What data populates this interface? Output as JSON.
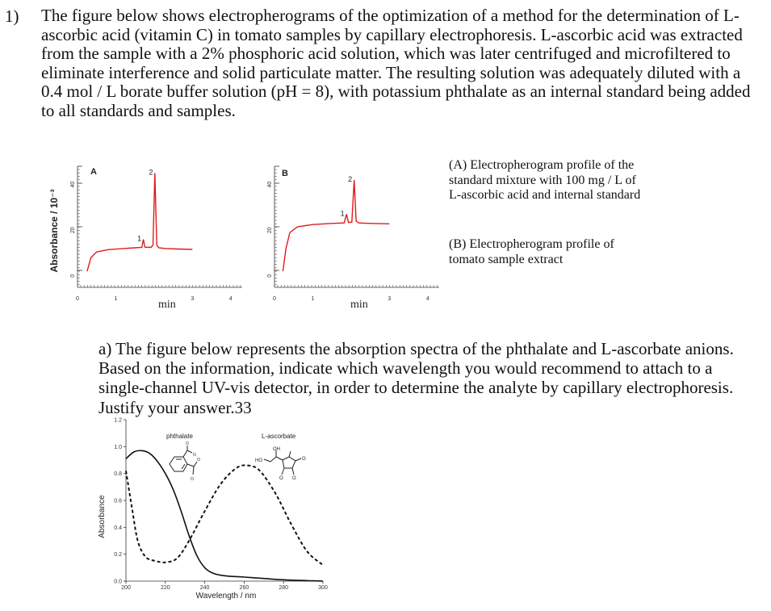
{
  "question": {
    "number": "1)",
    "intro": "The figure below shows electropherograms of the optimization of a method for the determination of L-ascorbic acid (vitamin C) in tomato samples by capillary electrophoresis. L-ascorbic acid was extracted from the sample with a 2% phosphoric acid solution, which was later centrifuged and microfiltered to eliminate interference and solid particulate matter. The resulting solution was adequately diluted with a 0.4 mol / L borate buffer solution (pH = 8), with potassium phthalate as an internal standard being added to all standards and samples."
  },
  "captions": {
    "a": "(A) Electropherogram profile of the standard mixture with 100 mg / L of L-ascorbic acid and internal standard",
    "b": "(B) Electropherogram profile of tomato sample extract"
  },
  "part_a": {
    "text": "a) The figure below represents the absorption spectra of the phthalate and L-ascorbate anions. Based on the information, indicate which wavelength you would recommend to attach to a single-channel UV-vis detector, in order to determine the analyte by capillary electrophoresis. Justify your answer.33"
  },
  "chart_data": [
    {
      "type": "line",
      "panel": "A",
      "ylabel": "Absorbance / 10⁻³",
      "xlabel": "min",
      "x_ticks": [
        "0",
        "1",
        "2",
        "3",
        "4"
      ],
      "y_ticks": [
        "0",
        "20",
        "40"
      ],
      "xlim": [
        0,
        4.3
      ],
      "ylim": [
        -5,
        48
      ],
      "peaks": [
        {
          "label": "1",
          "x": 1.72,
          "y": 16
        },
        {
          "label": "2",
          "x": 2.02,
          "y": 45
        }
      ],
      "series": [
        {
          "color": "#e01b1b",
          "points": [
            [
              0.25,
              2
            ],
            [
              0.35,
              8
            ],
            [
              0.5,
              10.5
            ],
            [
              0.8,
              11.5
            ],
            [
              1.2,
              12
            ],
            [
              1.5,
              12.3
            ],
            [
              1.68,
              12.5
            ],
            [
              1.72,
              16
            ],
            [
              1.76,
              12.6
            ],
            [
              1.92,
              12.5
            ],
            [
              1.97,
              13.5
            ],
            [
              2.02,
              45
            ],
            [
              2.07,
              13.5
            ],
            [
              2.12,
              12.3
            ],
            [
              2.3,
              12
            ],
            [
              2.6,
              11.8
            ],
            [
              3.0,
              11.6
            ]
          ]
        }
      ]
    },
    {
      "type": "line",
      "panel": "B",
      "xlabel": "min",
      "x_ticks": [
        "0",
        "1",
        "2",
        "3",
        "4"
      ],
      "y_ticks": [
        "0",
        "20",
        "40"
      ],
      "xlim": [
        0,
        4.3
      ],
      "ylim": [
        -5,
        48
      ],
      "peaks": [
        {
          "label": "1",
          "x": 1.88,
          "y": 27
        },
        {
          "label": "2",
          "x": 2.08,
          "y": 42
        }
      ],
      "series": [
        {
          "color": "#e01b1b",
          "points": [
            [
              0.22,
              2
            ],
            [
              0.3,
              12
            ],
            [
              0.4,
              19
            ],
            [
              0.6,
              21.5
            ],
            [
              1.0,
              22.5
            ],
            [
              1.5,
              23
            ],
            [
              1.82,
              23.2
            ],
            [
              1.88,
              27
            ],
            [
              1.93,
              23.4
            ],
            [
              2.02,
              23.5
            ],
            [
              2.08,
              42
            ],
            [
              2.13,
              24
            ],
            [
              2.2,
              23.2
            ],
            [
              2.5,
              23
            ],
            [
              3.0,
              22.8
            ]
          ]
        }
      ]
    },
    {
      "type": "line",
      "xlabel": "Wavelength / nm",
      "ylabel": "Absorbance",
      "x_ticks": [
        "200",
        "220",
        "240",
        "260",
        "280",
        "300"
      ],
      "y_ticks": [
        "0.0",
        "0.2",
        "0.4",
        "0.6",
        "0.8",
        "1.0",
        "1.2"
      ],
      "xlim": [
        200,
        300
      ],
      "ylim": [
        0,
        1.2
      ],
      "series": [
        {
          "name": "phthalate",
          "style": "solid",
          "color": "#111111",
          "points": [
            [
              200,
              0.91
            ],
            [
              204,
              0.96
            ],
            [
              208,
              0.97
            ],
            [
              212,
              0.95
            ],
            [
              216,
              0.89
            ],
            [
              220,
              0.8
            ],
            [
              224,
              0.68
            ],
            [
              228,
              0.52
            ],
            [
              232,
              0.34
            ],
            [
              236,
              0.19
            ],
            [
              240,
              0.1
            ],
            [
              244,
              0.06
            ],
            [
              250,
              0.04
            ],
            [
              260,
              0.03
            ],
            [
              270,
              0.02
            ],
            [
              280,
              0.01
            ],
            [
              300,
              0.0
            ]
          ]
        },
        {
          "name": "L-ascorbate",
          "style": "dashed",
          "color": "#111111",
          "points": [
            [
              200,
              0.82
            ],
            [
              203,
              0.55
            ],
            [
              206,
              0.3
            ],
            [
              210,
              0.18
            ],
            [
              215,
              0.15
            ],
            [
              220,
              0.14
            ],
            [
              226,
              0.17
            ],
            [
              232,
              0.3
            ],
            [
              240,
              0.52
            ],
            [
              248,
              0.72
            ],
            [
              256,
              0.84
            ],
            [
              262,
              0.86
            ],
            [
              268,
              0.82
            ],
            [
              276,
              0.65
            ],
            [
              284,
              0.42
            ],
            [
              292,
              0.22
            ],
            [
              300,
              0.12
            ]
          ]
        }
      ]
    }
  ],
  "structures": {
    "phthalate": "phthalate",
    "ascorbate": "L-ascorbate",
    "ascorbate_oh": "OH",
    "ascorbate_ho": "HO"
  }
}
